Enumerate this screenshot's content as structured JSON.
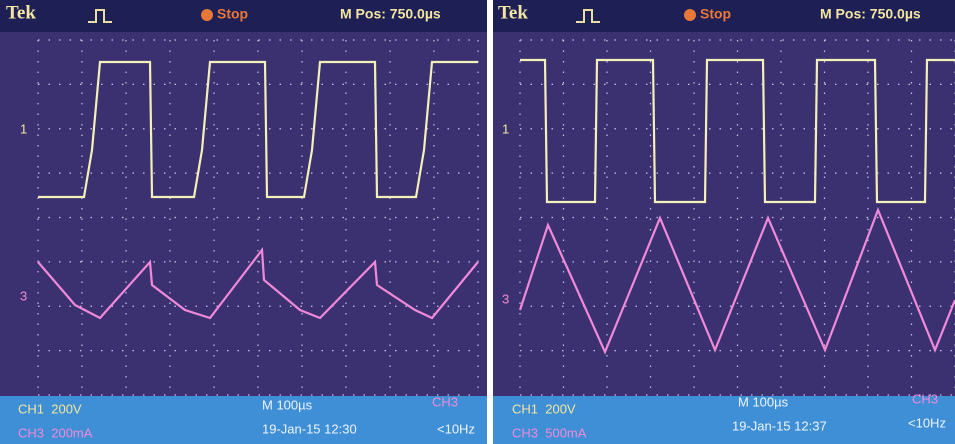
{
  "panels": [
    {
      "header": {
        "brand": "Tek",
        "trigger_state": "Stop",
        "position": "M Pos: 750.0µs"
      },
      "markers": [
        "1",
        "3"
      ],
      "footer": {
        "ch1": "CH1  200V",
        "ch3": "CH3  200mA",
        "timebase": "M 100µs",
        "datetime": "19-Jan-15 12:30",
        "trigger_source": "CH3",
        "frequency": "<10Hz"
      }
    },
    {
      "header": {
        "brand": "Tek",
        "trigger_state": "Stop",
        "position": "M Pos: 750.0µs"
      },
      "markers": [
        "1",
        "3"
      ],
      "footer": {
        "ch1": "CH1  200V",
        "ch3": "CH3  500mA",
        "timebase": "M 100µs",
        "datetime": "19-Jan-15 12:37",
        "trigger_source": "CH3",
        "frequency": "<10Hz"
      }
    }
  ]
}
